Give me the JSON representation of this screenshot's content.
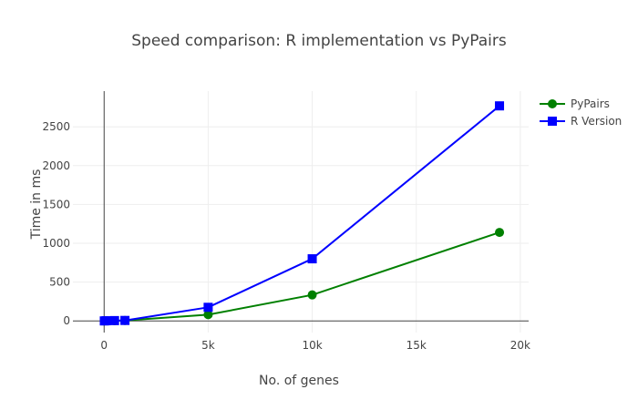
{
  "chart_data": {
    "type": "line",
    "title": "Speed comparison: R implementation vs PyPairs",
    "xlabel": "No. of genes",
    "ylabel": "Time in ms",
    "xlim": [
      -1500,
      20400
    ],
    "ylim": [
      -150,
      2960
    ],
    "xticks": [
      0,
      5000,
      10000,
      15000,
      20000
    ],
    "xtick_labels": [
      "0",
      "5k",
      "10k",
      "15k",
      "20k"
    ],
    "yticks": [
      0,
      500,
      1000,
      1500,
      2000,
      2500
    ],
    "ytick_labels": [
      "0",
      "500",
      "1000",
      "1500",
      "2000",
      "2500"
    ],
    "grid": true,
    "legend_position": "top-right",
    "series": [
      {
        "name": "PyPairs",
        "color": "#008000",
        "marker": "circle",
        "x": [
          10,
          100,
          500,
          1000,
          5000,
          10000,
          19000
        ],
        "y": [
          0,
          1,
          3,
          5,
          80,
          335,
          1140
        ]
      },
      {
        "name": "R Version",
        "color": "#0000ff",
        "marker": "square",
        "x": [
          10,
          100,
          500,
          1000,
          5000,
          10000,
          19000
        ],
        "y": [
          0,
          2,
          4,
          6,
          175,
          800,
          2770
        ]
      }
    ]
  }
}
